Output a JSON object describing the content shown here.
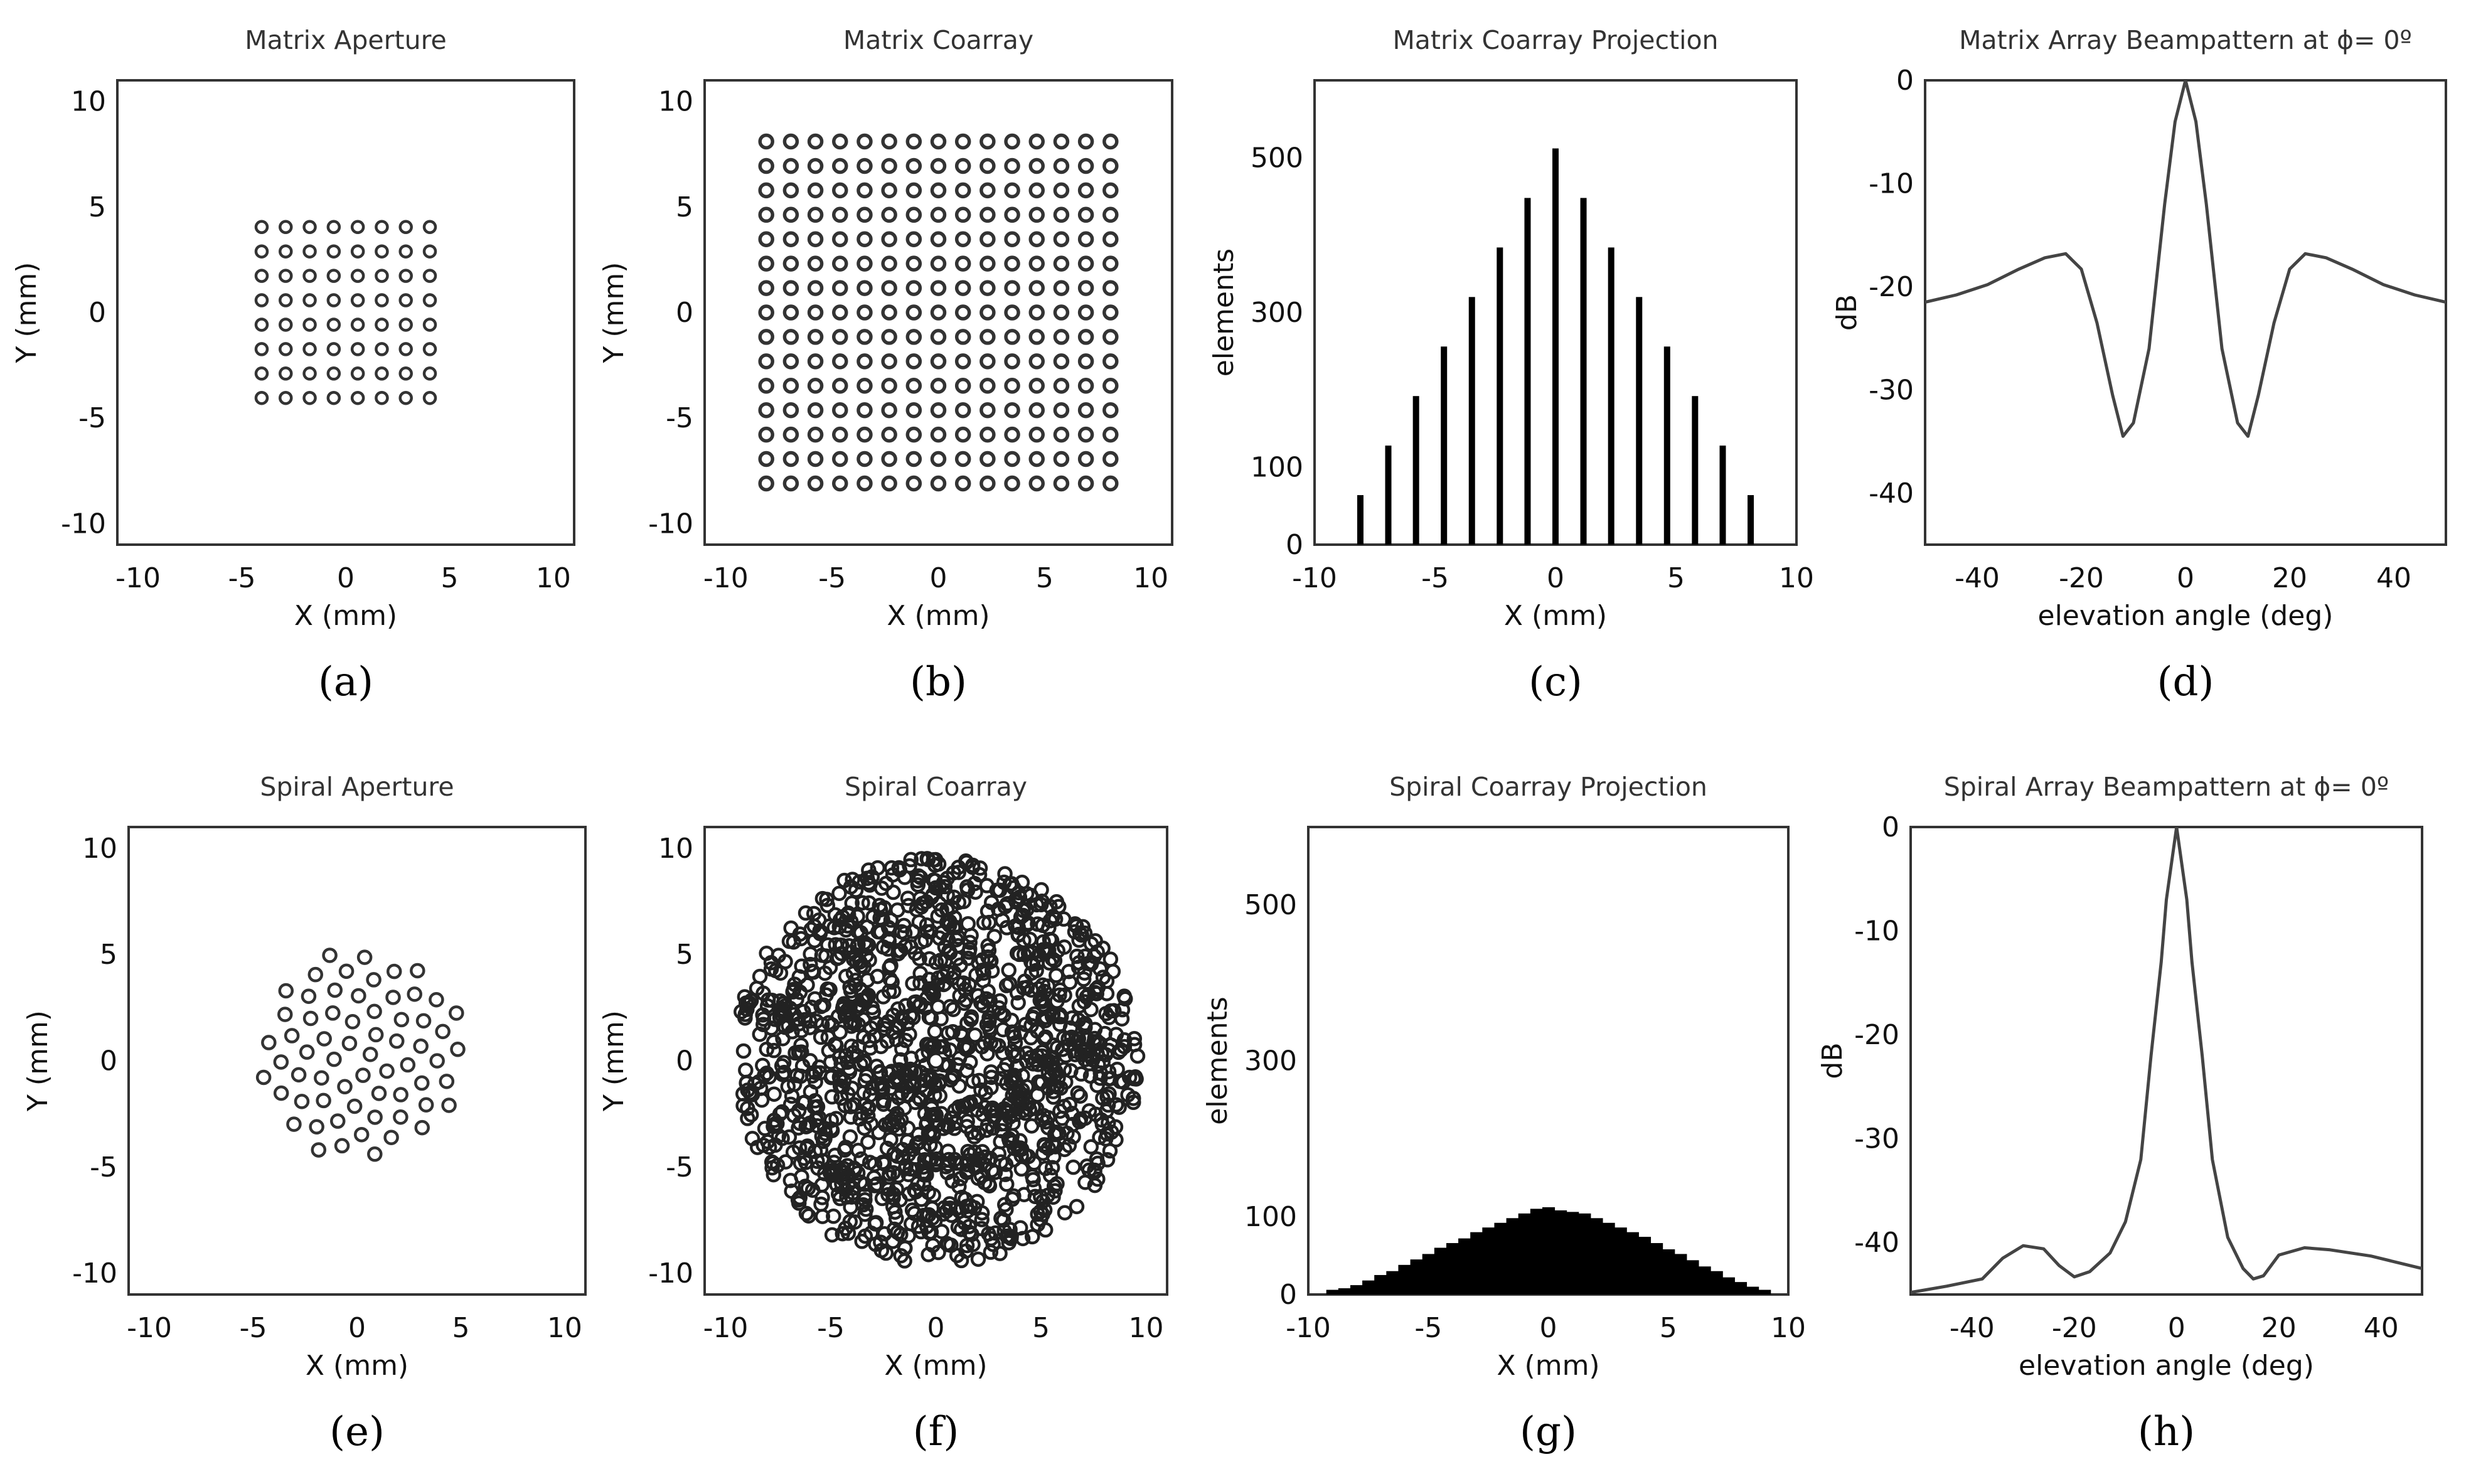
{
  "chart_data": [
    {
      "type": "scatter",
      "title": "Matrix Aperture",
      "xlabel": "X (mm)",
      "ylabel": "Y (mm)",
      "xlim": [
        -11,
        11
      ],
      "ylim": [
        -11,
        11
      ],
      "xticks": [
        "-10",
        "-5",
        "0",
        "5",
        "10"
      ],
      "yticks": [
        "10",
        "5",
        "0",
        "-5",
        "-10"
      ],
      "caption": "a",
      "points_grid": {
        "x_from": -4.05,
        "x_to": 4.05,
        "y_from": -4.05,
        "y_to": 4.05,
        "count": 8
      },
      "marker": "ring"
    },
    {
      "type": "scatter",
      "title": "Matrix Coarray",
      "xlabel": "X (mm)",
      "ylabel": "Y (mm)",
      "xlim": [
        -11,
        11
      ],
      "ylim": [
        -11,
        11
      ],
      "xticks": [
        "-10",
        "-5",
        "0",
        "5",
        "10"
      ],
      "yticks": [
        "10",
        "5",
        "0",
        "-5",
        "-10"
      ],
      "caption": "b",
      "points_grid": {
        "x_from": -8.1,
        "x_to": 8.1,
        "y_from": -8.1,
        "y_to": 8.1,
        "count": 15
      },
      "marker": "ring"
    },
    {
      "type": "bar",
      "title": "Matrix Coarray Projection",
      "xlabel": "X (mm)",
      "ylabel": "elements",
      "xlim": [
        -10,
        10
      ],
      "ylim": [
        0,
        600
      ],
      "xticks": [
        "-10",
        "-5",
        "0",
        "5",
        "10"
      ],
      "yticks": [
        "500",
        "300",
        "100",
        "0"
      ],
      "caption": "c",
      "x": [
        -8.1,
        -6.94,
        -5.79,
        -4.63,
        -3.47,
        -2.31,
        -1.16,
        0,
        1.16,
        2.31,
        3.47,
        4.63,
        5.79,
        6.94,
        8.1
      ],
      "values": [
        64,
        128,
        192,
        256,
        320,
        384,
        448,
        512,
        448,
        384,
        320,
        256,
        192,
        128,
        64
      ]
    },
    {
      "type": "line",
      "title": "Matrix Array Beampattern at ϕ= 0º",
      "xlabel": "elevation angle (deg)",
      "ylabel": "dB",
      "xlim": [
        -50,
        50
      ],
      "ylim": [
        -45,
        0
      ],
      "xticks": [
        "-40",
        "-20",
        "0",
        "20",
        "40"
      ],
      "yticks": [
        "0",
        "-10",
        "-20",
        "-30",
        "-40"
      ],
      "caption": "d",
      "x": [
        -50,
        -44,
        -38,
        -32,
        -27,
        -23,
        -20,
        -17,
        -14,
        -12,
        -10,
        -7,
        -4,
        -2,
        0,
        2,
        4,
        7,
        10,
        12,
        14,
        17,
        20,
        23,
        27,
        32,
        38,
        44,
        50
      ],
      "values": [
        -21.5,
        -20.8,
        -19.8,
        -18.3,
        -17.2,
        -16.8,
        -18.3,
        -23.5,
        -30.5,
        -34.5,
        -33.2,
        -26,
        -12,
        -4,
        0,
        -4,
        -12,
        -26,
        -33.2,
        -34.5,
        -30.5,
        -23.5,
        -18.3,
        -16.8,
        -17.2,
        -18.3,
        -19.8,
        -20.8,
        -21.5
      ]
    },
    {
      "type": "scatter",
      "title": "Spiral Aperture",
      "xlabel": "X (mm)",
      "ylabel": "Y (mm)",
      "xlim": [
        -11,
        11
      ],
      "ylim": [
        -11,
        11
      ],
      "xticks": [
        "-10",
        "-5",
        "0",
        "5",
        "10"
      ],
      "yticks": [
        "10",
        "5",
        "0",
        "-5",
        "-10"
      ],
      "caption": "e",
      "spiral": {
        "count": 64,
        "max_radius": 5.0,
        "center": [
          0.2,
          0.3
        ]
      },
      "marker": "ring"
    },
    {
      "type": "scatter",
      "title": "Spiral Coarray",
      "xlabel": "X (mm)",
      "ylabel": "Y (mm)",
      "xlim": [
        -11,
        11
      ],
      "ylim": [
        -11,
        11
      ],
      "xticks": [
        "-10",
        "-5",
        "0",
        "5",
        "10"
      ],
      "yticks": [
        "10",
        "5",
        "0",
        "-5",
        "-10"
      ],
      "caption": "f",
      "disc": {
        "count": 1400,
        "max_radius": 9.6,
        "center": [
          0,
          0
        ]
      },
      "marker": "ring"
    },
    {
      "type": "bar",
      "title": "Spiral Coarray Projection",
      "xlabel": "X (mm)",
      "ylabel": "elements",
      "xlim": [
        -10,
        10
      ],
      "ylim": [
        0,
        600
      ],
      "xticks": [
        "-10",
        "-5",
        "0",
        "5",
        "10"
      ],
      "yticks": [
        "500",
        "300",
        "100",
        "0"
      ],
      "caption": "g",
      "x": [
        -9,
        -8.5,
        -8,
        -7.5,
        -7,
        -6.5,
        -6,
        -5.5,
        -5,
        -4.5,
        -4,
        -3.5,
        -3,
        -2.5,
        -2,
        -1.5,
        -1,
        -0.5,
        0,
        0.5,
        1,
        1.5,
        2,
        2.5,
        3,
        3.5,
        4,
        4.5,
        5,
        5.5,
        6,
        6.5,
        7,
        7.5,
        8,
        8.5,
        9
      ],
      "values": [
        6,
        8,
        12,
        18,
        25,
        30,
        38,
        45,
        52,
        60,
        66,
        72,
        80,
        86,
        92,
        98,
        104,
        110,
        112,
        108,
        106,
        104,
        98,
        92,
        86,
        80,
        74,
        66,
        58,
        52,
        44,
        36,
        30,
        22,
        16,
        10,
        6
      ]
    },
    {
      "type": "line",
      "title": "Spiral Array Beampattern at ϕ= 0º",
      "xlabel": "elevation angle (deg)",
      "ylabel": "dB",
      "xlim": [
        -52,
        48
      ],
      "ylim": [
        -45,
        0
      ],
      "xticks": [
        "-40",
        "-20",
        "0",
        "20",
        "40"
      ],
      "yticks": [
        "0",
        "-10",
        "-20",
        "-30",
        "-40"
      ],
      "caption": "h",
      "x": [
        -52,
        -45,
        -38,
        -34,
        -30,
        -26,
        -23,
        -20,
        -17,
        -13,
        -10,
        -7,
        -5,
        -3,
        -2,
        0,
        2,
        3,
        5,
        7,
        10,
        13,
        15,
        17,
        20,
        25,
        30,
        38,
        48
      ],
      "values": [
        -44.8,
        -44.2,
        -43.5,
        -41.5,
        -40.3,
        -40.6,
        -42.2,
        -43.3,
        -42.8,
        -41,
        -38,
        -32,
        -22,
        -13,
        -7,
        0,
        -7,
        -13,
        -22,
        -32,
        -39.5,
        -42.5,
        -43.5,
        -43.2,
        -41.2,
        -40.5,
        -40.7,
        -41.3,
        -42.5
      ]
    }
  ]
}
